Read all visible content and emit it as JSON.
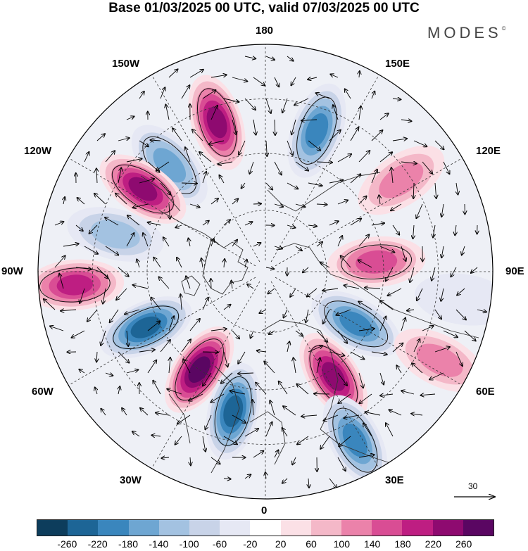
{
  "title": "Base 01/03/2025 00 UTC, valid 07/03/2025 00 UTC",
  "brand": "MODES",
  "brand_mark": "©",
  "longitude_labels": {
    "lon_180": "180",
    "lon_150e": "150E",
    "lon_120e": "120E",
    "lon_90e": "90E",
    "lon_60e": "60E",
    "lon_30e": "30E",
    "lon_0": "0",
    "lon_30w": "30W",
    "lon_60w": "60W",
    "lon_90w": "90W",
    "lon_120w": "120W",
    "lon_150w": "150W"
  },
  "reference_vector": {
    "label": "30"
  },
  "colorbar": {
    "ticks": [
      "-260",
      "-220",
      "-180",
      "-140",
      "-100",
      "-60",
      "-20",
      "20",
      "60",
      "100",
      "140",
      "180",
      "220",
      "260"
    ],
    "colors": [
      "#0d3d5c",
      "#1d6596",
      "#3a86bd",
      "#6ea6d2",
      "#a3c2e1",
      "#c8d3e8",
      "#e6e8f4",
      "#ffffff",
      "#fbe0e6",
      "#f4b8c8",
      "#eb82aa",
      "#d94d94",
      "#be1e82",
      "#8e0a70",
      "#5a0662"
    ]
  },
  "anomaly_centers": [
    {
      "lon": 198,
      "r": 0.69,
      "value": 240
    },
    {
      "lon": 160,
      "r": 0.66,
      "value": -180
    },
    {
      "lon": 222,
      "r": 0.63,
      "value": -160
    },
    {
      "lon": 124,
      "r": 0.72,
      "value": 120
    },
    {
      "lon": 236,
      "r": 0.65,
      "value": 220
    },
    {
      "lon": 256,
      "r": 0.68,
      "value": -120
    },
    {
      "lon": 274,
      "r": 0.84,
      "value": 180
    },
    {
      "lon": 295,
      "r": 0.58,
      "value": -220
    },
    {
      "lon": 326,
      "r": 0.52,
      "value": 260
    },
    {
      "lon": 347,
      "r": 0.63,
      "value": -240
    },
    {
      "lon": 33,
      "r": 0.55,
      "value": 240
    },
    {
      "lon": 60,
      "r": 0.46,
      "value": -200
    },
    {
      "lon": 95,
      "r": 0.49,
      "value": 160
    },
    {
      "lon": 28,
      "r": 0.84,
      "value": -180
    },
    {
      "lon": 63,
      "r": 0.86,
      "value": 110
    },
    {
      "lon": 82,
      "r": 0.88,
      "value": -40
    }
  ]
}
